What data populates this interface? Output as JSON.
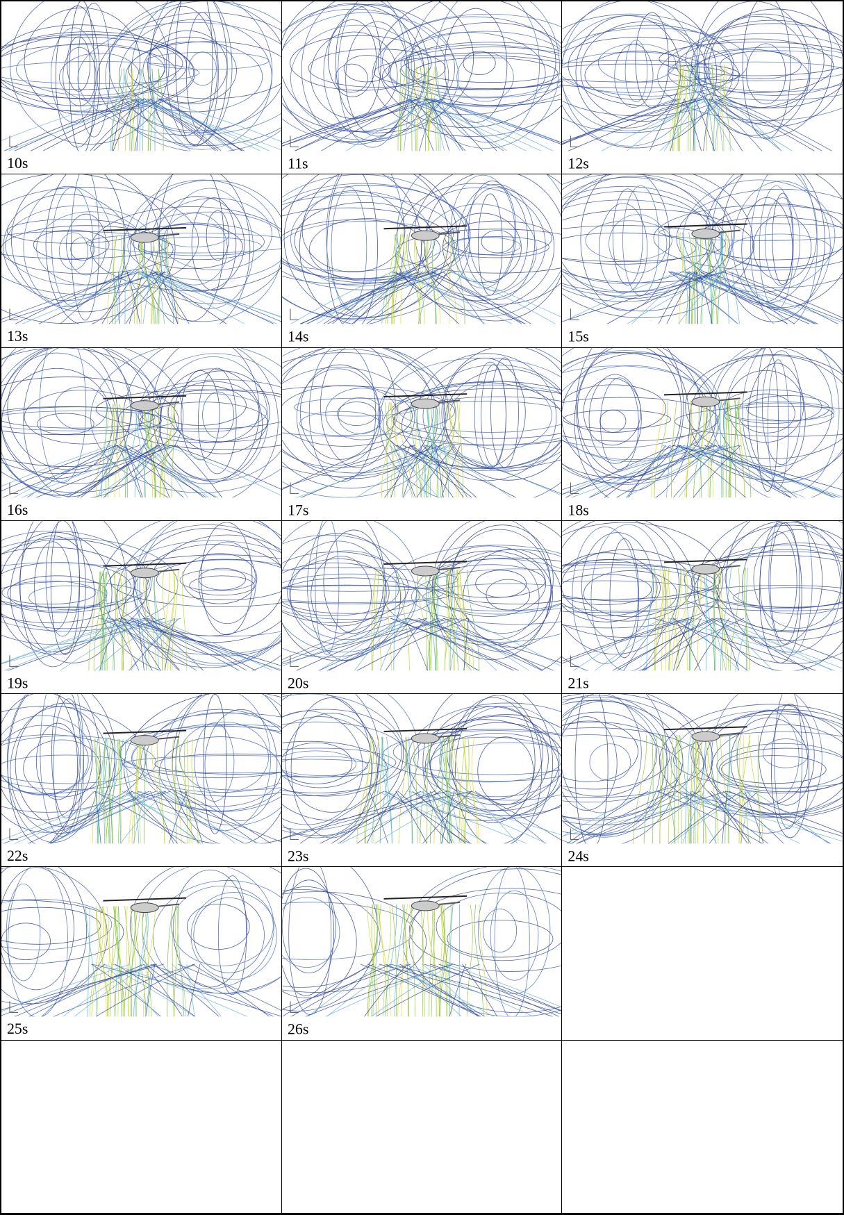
{
  "panels": [
    {
      "label": "10s"
    },
    {
      "label": "11s"
    },
    {
      "label": "12s"
    },
    {
      "label": "13s"
    },
    {
      "label": "14s"
    },
    {
      "label": "15s"
    },
    {
      "label": "16s"
    },
    {
      "label": "17s"
    },
    {
      "label": "18s"
    },
    {
      "label": "19s"
    },
    {
      "label": "20s"
    },
    {
      "label": "21s"
    },
    {
      "label": "22s"
    },
    {
      "label": "23s"
    },
    {
      "label": "24s"
    },
    {
      "label": "25s"
    },
    {
      "label": "26s"
    }
  ]
}
